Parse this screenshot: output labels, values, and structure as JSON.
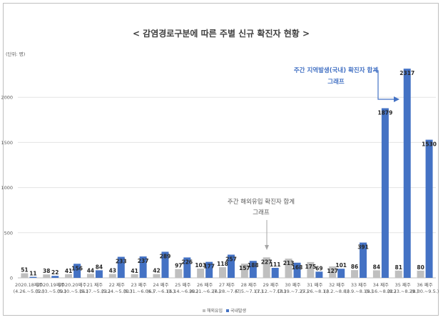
{
  "chart_data": {
    "type": "bar",
    "title": "< 감염경로구분에 따른 주별 신규 확진자 현황 >",
    "unit_label": "(단위: 명)",
    "ylim": [
      0,
      2500
    ],
    "yticks": [
      "0",
      "500",
      "1000",
      "1500",
      "2000"
    ],
    "grid": true,
    "legend_position": "bottom",
    "categories": [
      {
        "week": "2020.18째주",
        "range": "(4.26.~5.02.)"
      },
      {
        "week": "2020.19째주",
        "range": "(5.03.~5.09.)"
      },
      {
        "week": "2020.20째주",
        "range": "(5.10.~5.16.)"
      },
      {
        "week": "21 째주",
        "range": "(5.17.~5.23.)"
      },
      {
        "week": "22 째주",
        "range": "(5.24.~5.30.)"
      },
      {
        "week": "23 째주",
        "range": "(5.31.~6.06.)"
      },
      {
        "week": "24 째주",
        "range": "(6.7.~6.13.)"
      },
      {
        "week": "25 째주",
        "range": "(6.14.~6.20.)"
      },
      {
        "week": "26 째주",
        "range": "(6.21.~6.27.)"
      },
      {
        "week": "27 째주",
        "range": "(6.28.~7.4.)"
      },
      {
        "week": "28 째주",
        "range": "(7.5.~7.11.)"
      },
      {
        "week": "29 째주",
        "range": "(7.12.~7.18.)"
      },
      {
        "week": "30 째주",
        "range": "(7.19.~7.25.)"
      },
      {
        "week": "31 째주",
        "range": "(7.26.~8.1.)"
      },
      {
        "week": "32 째주",
        "range": "(8.2.~8.8.)"
      },
      {
        "week": "33 째주",
        "range": "(8.9.~8.15.)"
      },
      {
        "week": "34 째주",
        "range": "(8.16.~8.22.)"
      },
      {
        "week": "35 째주",
        "range": "(8.23.~8.29.)"
      },
      {
        "week": "36 째주",
        "range": "(8.30.~9.5.)"
      }
    ],
    "series": [
      {
        "name": "해외유입",
        "color": "#bfbfbf",
        "values": [
          51,
          38,
          41,
          44,
          43,
          41,
          42,
          97,
          103,
          118,
          157,
          227,
          213,
          175,
          127,
          86,
          84,
          81,
          80
        ]
      },
      {
        "name": "국내발생",
        "color": "#4472C4",
        "values": [
          11,
          22,
          156,
          84,
          233,
          237,
          289,
          226,
          177,
          257,
          188,
          111,
          168,
          69,
          101,
          391,
          1879,
          2317,
          1530
        ]
      }
    ],
    "annotations": [
      {
        "id": "overseas",
        "lines": [
          "주간 해외유입 확진자 합계",
          "그래프"
        ],
        "color": "#595959"
      },
      {
        "id": "domestic",
        "lines": [
          "주간 지역발생(국내) 확진자 합계",
          "그래프"
        ],
        "color": "#4472C4"
      }
    ]
  }
}
